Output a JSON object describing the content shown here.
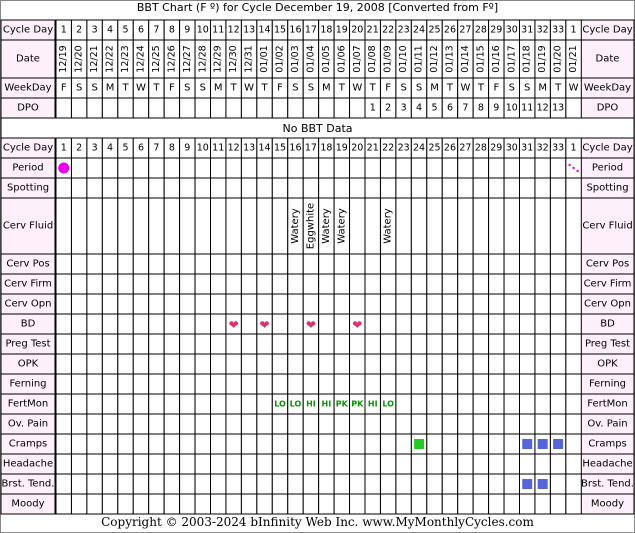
{
  "title": "BBT Chart (F º) for Cycle December 19, 2008  [Converted from Fº]",
  "no_data_label": "No BBT Data",
  "copyright": "Copyright © 2003-2024 bInfinity Web Inc.     www.MyMonthlyCycles.com",
  "colors": {
    "label_bg": "#fdf0fa",
    "grid": "#000000",
    "period": "#ee00ee",
    "heart": "#e0306a",
    "fertmon_text": "#009900",
    "cramps_green": "#22cc22",
    "blue_square": "#5566dd"
  },
  "chart_data": {
    "type": "table",
    "cycle_days": [
      "1",
      "2",
      "3",
      "4",
      "5",
      "6",
      "7",
      "8",
      "9",
      "10",
      "11",
      "12",
      "13",
      "14",
      "15",
      "16",
      "17",
      "18",
      "19",
      "20",
      "21",
      "22",
      "23",
      "24",
      "25",
      "26",
      "27",
      "28",
      "29",
      "30",
      "31",
      "32",
      "33",
      "1"
    ],
    "dates": [
      "12/19",
      "12/20",
      "12/21",
      "12/22",
      "12/23",
      "12/24",
      "12/25",
      "12/26",
      "12/27",
      "12/28",
      "12/29",
      "12/30",
      "12/31",
      "01/01",
      "01/02",
      "01/03",
      "01/04",
      "01/05",
      "01/06",
      "01/07",
      "01/08",
      "01/09",
      "01/10",
      "01/11",
      "01/12",
      "01/13",
      "01/14",
      "01/15",
      "01/16",
      "01/17",
      "01/18",
      "01/19",
      "01/20",
      "01/21"
    ],
    "weekdays": [
      "F",
      "S",
      "S",
      "M",
      "T",
      "W",
      "T",
      "F",
      "S",
      "S",
      "M",
      "T",
      "W",
      "T",
      "F",
      "S",
      "S",
      "M",
      "T",
      "W",
      "T",
      "F",
      "S",
      "S",
      "M",
      "T",
      "W",
      "T",
      "F",
      "S",
      "S",
      "M",
      "T",
      "W"
    ],
    "dpo": [
      "",
      "",
      "",
      "",
      "",
      "",
      "",
      "",
      "",
      "",
      "",
      "",
      "",
      "",
      "",
      "",
      "",
      "",
      "",
      "",
      "1",
      "2",
      "3",
      "4",
      "5",
      "6",
      "7",
      "8",
      "9",
      "10",
      "11",
      "12",
      "13",
      ""
    ],
    "row_labels": {
      "cycle_day": "Cycle Day",
      "date": "Date",
      "weekday": "WeekDay",
      "dpo": "DPO",
      "period": "Period",
      "spotting": "Spotting",
      "cerv_fluid": "Cerv Fluid",
      "cerv_pos": "Cerv Pos",
      "cerv_firm": "Cerv Firm",
      "cerv_opn": "Cerv Opn",
      "bd": "BD",
      "preg_test": "Preg Test",
      "opk": "OPK",
      "ferning": "Ferning",
      "fertmon": "FertMon",
      "ov_pain": "Ov. Pain",
      "cramps": "Cramps",
      "headache": "Headache",
      "brst_tend": "Brst. Tend.",
      "moody": "Moody"
    },
    "period": {
      "full_days": [
        1
      ],
      "light_days": [
        34
      ]
    },
    "cerv_fluid": [
      {
        "day": 16,
        "value": "Watery"
      },
      {
        "day": 17,
        "value": "Eggwhite"
      },
      {
        "day": 18,
        "value": "Watery"
      },
      {
        "day": 19,
        "value": "Watery"
      },
      {
        "day": 22,
        "value": "Watery"
      }
    ],
    "bd_days": [
      12,
      14,
      17,
      20
    ],
    "fertmon": [
      {
        "day": 15,
        "value": "LO"
      },
      {
        "day": 16,
        "value": "LO"
      },
      {
        "day": 17,
        "value": "HI"
      },
      {
        "day": 18,
        "value": "HI"
      },
      {
        "day": 19,
        "value": "PK"
      },
      {
        "day": 20,
        "value": "PK"
      },
      {
        "day": 21,
        "value": "HI"
      },
      {
        "day": 22,
        "value": "LO"
      }
    ],
    "cramps": [
      {
        "day": 24,
        "level": "green"
      },
      {
        "day": 31,
        "level": "blue"
      },
      {
        "day": 32,
        "level": "blue"
      },
      {
        "day": 33,
        "level": "blue"
      }
    ],
    "brst_tend_days": [
      31,
      32
    ]
  }
}
